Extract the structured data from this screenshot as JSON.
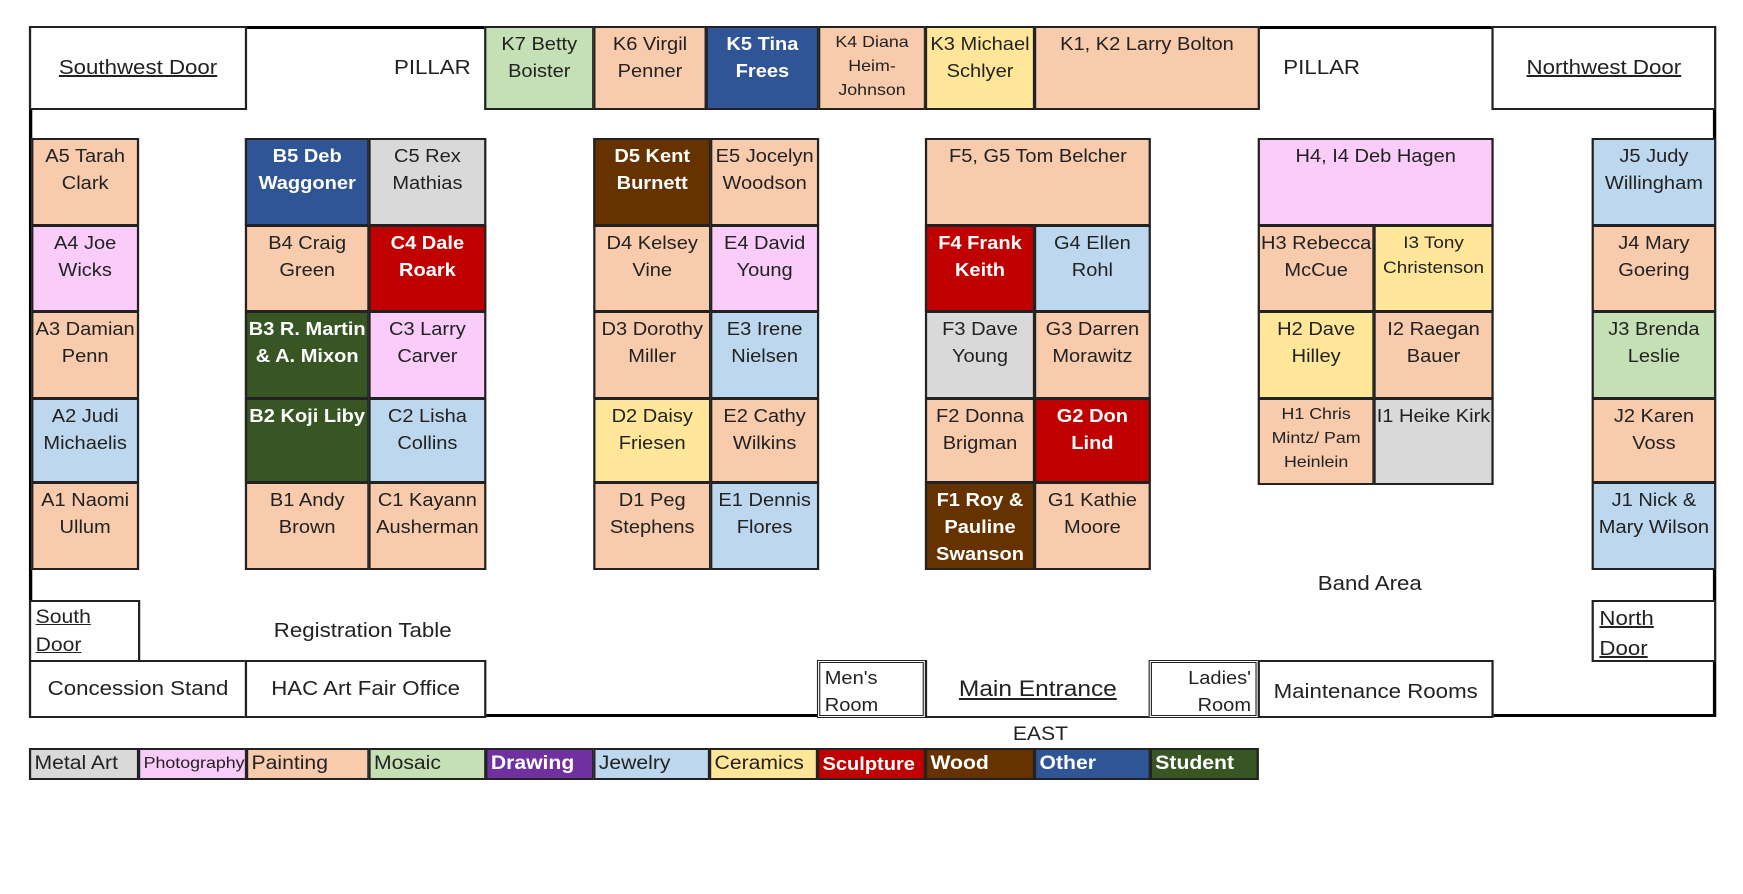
{
  "colors": {
    "metal_art": "#d9d9d9",
    "photography": "#f9ccf9",
    "painting": "#f8cbad",
    "mosaic": "#c5e0b4",
    "drawing": "#7030a0",
    "jewelry": "#bdd7ee",
    "ceramics": "#ffe699",
    "sculpture": "#c00000",
    "wood": "#663300",
    "other": "#2f5597",
    "student": "#375623"
  },
  "doors": {
    "southwest": "Southwest Door",
    "northwest": "Northwest Door",
    "south_l1": "South",
    "south_l2": "Door",
    "north_l1": "North",
    "north_l2": "Door",
    "main": "Main Entrance"
  },
  "labels": {
    "pillar_left": "PILLAR",
    "pillar_right": "PILLAR",
    "band_area": "Band Area",
    "registration": "Registration Table",
    "concession": "Concession Stand",
    "office": "HAC Art Fair Office",
    "mens_l1": "Men's",
    "mens_l2": "Room",
    "ladies_l1": "Ladies'",
    "ladies_l2": "Room",
    "maintenance": "Maintenance Rooms",
    "east": "EAST"
  },
  "booths": {
    "K7": "K7 Betty Boister",
    "K6": "K6 Virgil Penner",
    "K5": "K5 Tina Frees",
    "K4": "K4 Diana Heim-Johnson",
    "K3": "K3 Michael Schlyer",
    "K1K2": "K1, K2 Larry Bolton",
    "A5": "A5 Tarah Clark",
    "A4": "A4 Joe Wicks",
    "A3": "A3 Damian Penn",
    "A2": "A2 Judi Michaelis",
    "A1": "A1 Naomi Ullum",
    "B5": "B5 Deb Waggoner",
    "B4": "B4 Craig Green",
    "B3": "B3 R. Martin & A. Mixon",
    "B2": "B2 Koji Liby",
    "B1": "B1 Andy Brown",
    "C5": "C5 Rex Mathias",
    "C4": "C4 Dale Roark",
    "C3": "C3 Larry Carver",
    "C2": "C2 Lisha Collins",
    "C1": "C1 Kayann Ausherman",
    "D5": "D5 Kent Burnett",
    "D4": "D4 Kelsey Vine",
    "D3": "D3 Dorothy Miller",
    "D2": "D2 Daisy Friesen",
    "D1": "D1 Peg Stephens",
    "E5": "E5 Jocelyn Woodson",
    "E4": "E4 David Young",
    "E3": "E3 Irene Nielsen",
    "E2": "E2 Cathy Wilkins",
    "E1": "E1 Dennis Flores",
    "F5G5": "F5, G5 Tom Belcher",
    "F4": "F4 Frank Keith",
    "F3": "F3 Dave Young",
    "F2": "F2 Donna Brigman",
    "F1": "F1 Roy & Pauline Swanson",
    "G4": "G4 Ellen Rohl",
    "G3": "G3 Darren Morawitz",
    "G2": "G2 Don Lind",
    "G1": "G1 Kathie Moore",
    "H4I4": "H4, I4 Deb Hagen",
    "H3": "H3 Rebecca McCue",
    "H2": "H2 Dave Hilley",
    "H1": "H1 Chris Mintz/ Pam Heinlein",
    "I3": "I3 Tony Christenson",
    "I2": "I2 Raegan Bauer",
    "I1": "I1 Heike Kirk",
    "J5": "J5 Judy Willingham",
    "J4": "J4 Mary Goering",
    "J3": "J3 Brenda Leslie",
    "J2": "J2 Karen Voss",
    "J1": "J1 Nick & Mary Wilson"
  },
  "legend": {
    "metal_art": "Metal Art",
    "photography": "Photography",
    "painting": "Painting",
    "mosaic": "Mosaic",
    "drawing": "Drawing",
    "jewelry": "Jewelry",
    "ceramics": "Ceramics",
    "sculpture": "Sculpture",
    "wood": "Wood",
    "other": "Other",
    "student": "Student"
  }
}
